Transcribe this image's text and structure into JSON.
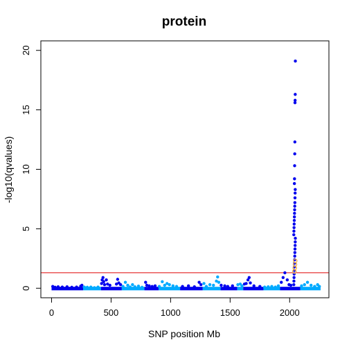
{
  "chart_data": {
    "type": "scatter",
    "title": "protein",
    "xlabel": "SNP position Mb",
    "ylabel": "-log10(qvalues)",
    "xlim": [
      -90,
      2330
    ],
    "ylim": [
      -0.8,
      20.8
    ],
    "x_ticks": [
      0,
      500,
      1000,
      1500,
      2000
    ],
    "x_tick_labels": [
      "0",
      "500",
      "1000",
      "1500",
      "2000"
    ],
    "y_ticks": [
      0,
      5,
      10,
      15,
      20
    ],
    "y_tick_labels": [
      "0",
      "5",
      "10",
      "15",
      "20"
    ],
    "threshold": {
      "y": 1.3,
      "color": "#e00000"
    },
    "colors": {
      "dark": "#0000ee",
      "light": "#00aaff",
      "highlight": "#f4b040"
    },
    "chromosomes": [
      {
        "start": 0,
        "end": 265,
        "shade": "dark"
      },
      {
        "start": 265,
        "end": 415,
        "shade": "light"
      },
      {
        "start": 415,
        "end": 590,
        "shade": "dark"
      },
      {
        "start": 590,
        "end": 780,
        "shade": "light"
      },
      {
        "start": 780,
        "end": 900,
        "shade": "dark"
      },
      {
        "start": 900,
        "end": 1080,
        "shade": "light"
      },
      {
        "start": 1080,
        "end": 1270,
        "shade": "dark"
      },
      {
        "start": 1270,
        "end": 1420,
        "shade": "light"
      },
      {
        "start": 1420,
        "end": 1560,
        "shade": "dark"
      },
      {
        "start": 1560,
        "end": 1610,
        "shade": "light"
      },
      {
        "start": 1610,
        "end": 1780,
        "shade": "dark"
      },
      {
        "start": 1780,
        "end": 1920,
        "shade": "light"
      },
      {
        "start": 1920,
        "end": 2090,
        "shade": "dark"
      },
      {
        "start": 2090,
        "end": 2260,
        "shade": "light"
      }
    ],
    "series": [
      {
        "shade": "dark",
        "points": [
          [
            10,
            0.15
          ],
          [
            30,
            0.08
          ],
          [
            55,
            0.12
          ],
          [
            90,
            0.1
          ],
          [
            130,
            0.12
          ],
          [
            170,
            0.08
          ],
          [
            210,
            0.1
          ],
          [
            245,
            0.18
          ],
          [
            255,
            0.25
          ],
          [
            420,
            0.4
          ],
          [
            425,
            0.7
          ],
          [
            432,
            0.9
          ],
          [
            438,
            0.55
          ],
          [
            445,
            0.3
          ],
          [
            460,
            0.7
          ],
          [
            470,
            0.35
          ],
          [
            490,
            0.25
          ],
          [
            545,
            0.35
          ],
          [
            555,
            0.75
          ],
          [
            565,
            0.45
          ],
          [
            580,
            0.3
          ],
          [
            790,
            0.5
          ],
          [
            800,
            0.25
          ],
          [
            820,
            0.2
          ],
          [
            845,
            0.15
          ],
          [
            870,
            0.2
          ],
          [
            1100,
            0.15
          ],
          [
            1150,
            0.2
          ],
          [
            1200,
            0.12
          ],
          [
            1240,
            0.5
          ],
          [
            1255,
            0.3
          ],
          [
            1425,
            0.25
          ],
          [
            1455,
            0.2
          ],
          [
            1480,
            0.15
          ],
          [
            1520,
            0.2
          ],
          [
            1620,
            0.35
          ],
          [
            1635,
            0.4
          ],
          [
            1650,
            0.7
          ],
          [
            1660,
            0.9
          ],
          [
            1670,
            0.45
          ],
          [
            1700,
            0.2
          ],
          [
            1750,
            0.15
          ],
          [
            1930,
            0.5
          ],
          [
            1945,
            0.9
          ],
          [
            1960,
            1.3
          ],
          [
            1980,
            0.7
          ],
          [
            1995,
            0.3
          ],
          [
            2010,
            0.25
          ],
          [
            2035,
            0.3
          ],
          [
            2036,
            0.6
          ],
          [
            2037,
            0.9
          ],
          [
            2038,
            1.2
          ],
          [
            2039,
            1.5
          ],
          [
            2040,
            1.8
          ],
          [
            2041,
            2.1
          ],
          [
            2042,
            2.4
          ],
          [
            2043,
            2.7
          ],
          [
            2044,
            3.0
          ],
          [
            2045,
            3.3
          ],
          [
            2046,
            3.6
          ],
          [
            2047,
            3.9
          ],
          [
            2048,
            4.2
          ],
          [
            2035,
            4.5
          ],
          [
            2036,
            4.8
          ],
          [
            2037,
            5.1
          ],
          [
            2038,
            5.4
          ],
          [
            2039,
            5.7
          ],
          [
            2040,
            6.0
          ],
          [
            2041,
            6.3
          ],
          [
            2042,
            6.6
          ],
          [
            2043,
            6.9
          ],
          [
            2044,
            7.2
          ],
          [
            2045,
            7.6
          ],
          [
            2046,
            8.0
          ],
          [
            2047,
            8.3
          ],
          [
            2040,
            8.8
          ],
          [
            2041,
            9.2
          ],
          [
            2042,
            10.3
          ],
          [
            2043,
            11.3
          ],
          [
            2044,
            12.3
          ],
          [
            2045,
            15.6
          ],
          [
            2046,
            15.8
          ],
          [
            2047,
            16.3
          ],
          [
            2048,
            19.1
          ]
        ]
      },
      {
        "shade": "light",
        "points": [
          [
            275,
            0.1
          ],
          [
            300,
            0.08
          ],
          [
            330,
            0.1
          ],
          [
            360,
            0.05
          ],
          [
            390,
            0.1
          ],
          [
            600,
            0.15
          ],
          [
            620,
            0.5
          ],
          [
            640,
            0.25
          ],
          [
            660,
            0.1
          ],
          [
            680,
            0.3
          ],
          [
            700,
            0.12
          ],
          [
            730,
            0.18
          ],
          [
            760,
            0.08
          ],
          [
            905,
            0.15
          ],
          [
            930,
            0.55
          ],
          [
            950,
            0.25
          ],
          [
            970,
            0.4
          ],
          [
            990,
            0.3
          ],
          [
            1020,
            0.2
          ],
          [
            1050,
            0.15
          ],
          [
            1280,
            0.4
          ],
          [
            1300,
            0.15
          ],
          [
            1330,
            0.3
          ],
          [
            1360,
            0.25
          ],
          [
            1385,
            0.6
          ],
          [
            1395,
            0.95
          ],
          [
            1405,
            0.5
          ],
          [
            1565,
            0.3
          ],
          [
            1585,
            0.35
          ],
          [
            1600,
            0.2
          ],
          [
            1790,
            0.1
          ],
          [
            1820,
            0.12
          ],
          [
            1850,
            0.15
          ],
          [
            1880,
            0.1
          ],
          [
            1905,
            0.2
          ],
          [
            2100,
            0.2
          ],
          [
            2125,
            0.3
          ],
          [
            2150,
            0.5
          ],
          [
            2180,
            0.25
          ],
          [
            2210,
            0.15
          ],
          [
            2235,
            0.3
          ],
          [
            2250,
            0.15
          ]
        ]
      },
      {
        "shade": "highlight",
        "points": [
          [
            2040,
            1.4
          ],
          [
            2043,
            1.7
          ],
          [
            2045,
            2.0
          ],
          [
            2047,
            2.3
          ]
        ]
      }
    ]
  }
}
